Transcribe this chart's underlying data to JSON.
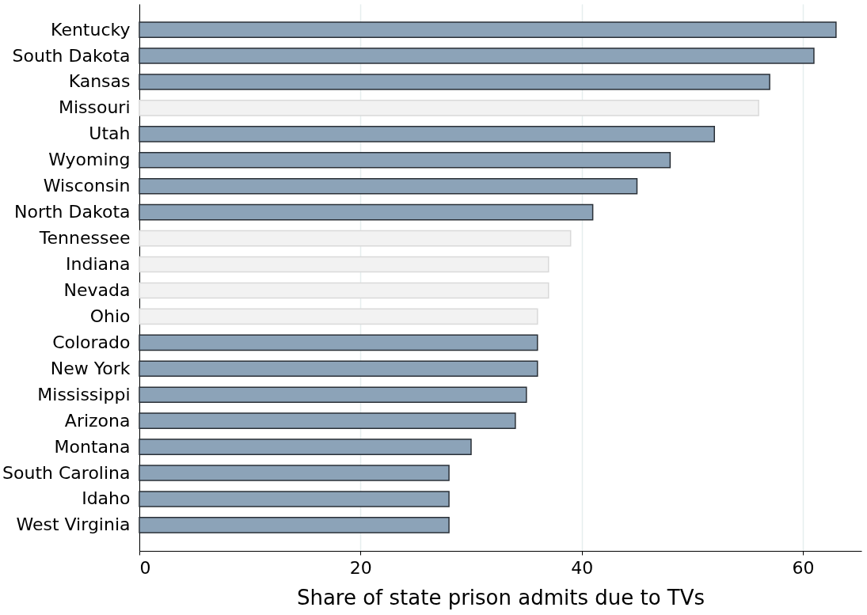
{
  "chart_data": {
    "type": "bar",
    "orientation": "horizontal",
    "xlabel": "Share of state prison admits due to TVs",
    "categories": [
      "Kentucky",
      "South Dakota",
      "Kansas",
      "Missouri",
      "Utah",
      "Wyoming",
      "Wisconsin",
      "North Dakota",
      "Tennessee",
      "Indiana",
      "Nevada",
      "Ohio",
      "Colorado",
      "New York",
      "Mississippi",
      "Arizona",
      "Montana",
      "South Carolina",
      "Idaho",
      "West Virginia"
    ],
    "values": [
      63,
      61,
      57,
      56,
      52,
      48,
      45,
      41,
      39,
      37,
      37,
      36,
      36,
      36,
      35,
      34,
      30,
      28,
      28,
      28
    ],
    "colors": [
      "#8ca3b8",
      "#8ca3b8",
      "#8ca3b8",
      "#f2f2f2",
      "#8ca3b8",
      "#8ca3b8",
      "#8ca3b8",
      "#8ca3b8",
      "#f2f2f2",
      "#f2f2f2",
      "#f2f2f2",
      "#f2f2f2",
      "#8ca3b8",
      "#8ca3b8",
      "#8ca3b8",
      "#8ca3b8",
      "#8ca3b8",
      "#8ca3b8",
      "#8ca3b8",
      "#8ca3b8"
    ],
    "xlim": [
      0,
      65.3
    ],
    "xticks": [
      0,
      20,
      40,
      60
    ],
    "grid": "x"
  }
}
